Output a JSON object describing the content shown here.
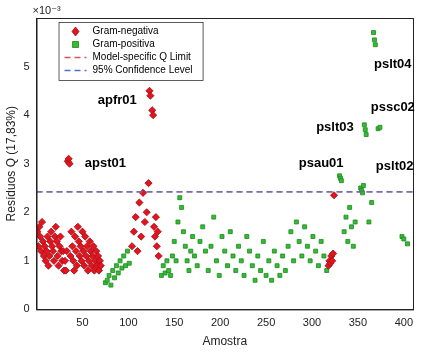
{
  "chart_data": {
    "type": "scatter",
    "x_label": "Amostra",
    "y_label": "Resíduos Q (17,83%)",
    "y_exponent_label": "×10⁻³",
    "xlim": [
      0,
      410
    ],
    "xticks": [
      50,
      100,
      150,
      200,
      250,
      300,
      350,
      400
    ],
    "ylim": [
      0,
      6
    ],
    "yticks": [
      0,
      1,
      2,
      3,
      4,
      5
    ],
    "grid": false,
    "legend": "upper left",
    "series": [
      {
        "name": "Gram-negativa",
        "type": "scatter",
        "marker": "diamond",
        "color": "#e3141e",
        "x": [
          1,
          2,
          3,
          4,
          5,
          6,
          7,
          8,
          9,
          10,
          11,
          12,
          13,
          14,
          15,
          16,
          17,
          18,
          19,
          20,
          21,
          22,
          23,
          24,
          25,
          26,
          27,
          28,
          29,
          30,
          31,
          32,
          33,
          34,
          35,
          36,
          37,
          38,
          39,
          40,
          41,
          42,
          43,
          44,
          45,
          46,
          47,
          48,
          49,
          50,
          51,
          52,
          53,
          54,
          55,
          56,
          57,
          58,
          59,
          60,
          61,
          62,
          63,
          64,
          65,
          66,
          67,
          68,
          69,
          70,
          104,
          106,
          108,
          110,
          112,
          114,
          116,
          118,
          120,
          122,
          123,
          124,
          126,
          127,
          128,
          129,
          130,
          131,
          132,
          133,
          318,
          319,
          320,
          321,
          322,
          323,
          324
        ],
        "values": [
          1.6,
          1.3,
          1.7,
          1.5,
          1.2,
          1.8,
          1.4,
          1.1,
          1.3,
          1.0,
          1.2,
          1.5,
          0.9,
          1.1,
          1.4,
          1.6,
          1.3,
          1.2,
          1.0,
          1.5,
          1.7,
          1.4,
          1.1,
          0.9,
          1.3,
          1.5,
          1.2,
          1.0,
          1.2,
          0.8,
          1.0,
          0.8,
          1.2,
          3.05,
          3.1,
          3.0,
          1.1,
          1.6,
          1.3,
          1.0,
          0.8,
          1.5,
          1.2,
          0.9,
          1.7,
          1.4,
          1.1,
          1.3,
          1.0,
          1.6,
          1.2,
          0.9,
          1.5,
          1.1,
          1.3,
          0.8,
          1.0,
          1.4,
          1.2,
          0.9,
          1.1,
          1.3,
          0.8,
          1.0,
          1.2,
          0.9,
          1.1,
          0.8,
          1.0,
          0.9,
          1.3,
          1.6,
          1.9,
          1.2,
          2.2,
          1.5,
          2.4,
          1.8,
          2.0,
          2.6,
          4.5,
          4.4,
          4.1,
          4.0,
          1.7,
          1.5,
          1.9,
          1.3,
          1.6,
          1.1,
          0.9,
          1.0,
          0.95,
          1.1,
          1.0,
          1.15,
          2.35
        ]
      },
      {
        "name": "Gram-positiva",
        "type": "scatter",
        "marker": "square",
        "color": "#2fbf2f",
        "x": [
          75,
          77,
          79,
          81,
          83,
          85,
          87,
          89,
          91,
          93,
          95,
          97,
          99,
          101,
          136,
          138,
          140,
          142,
          144,
          146,
          148,
          150,
          152,
          154,
          156,
          158,
          160,
          162,
          164,
          166,
          168,
          170,
          172,
          175,
          178,
          181,
          184,
          187,
          190,
          193,
          196,
          199,
          202,
          205,
          208,
          211,
          214,
          217,
          220,
          223,
          226,
          229,
          232,
          235,
          238,
          241,
          244,
          247,
          250,
          253,
          256,
          259,
          262,
          265,
          268,
          271,
          274,
          277,
          280,
          283,
          286,
          289,
          292,
          295,
          298,
          301,
          304,
          307,
          310,
          313,
          316,
          330,
          331,
          332,
          335,
          337,
          339,
          341,
          343,
          345,
          347,
          353,
          354,
          355,
          356,
          357,
          358,
          359,
          362,
          365,
          367,
          368,
          369,
          372,
          374,
          398,
          400,
          404
        ],
        "values": [
          0.55,
          0.6,
          0.7,
          0.5,
          0.8,
          0.65,
          0.9,
          0.75,
          1.0,
          0.85,
          1.1,
          0.9,
          1.2,
          0.95,
          0.7,
          0.9,
          0.75,
          1.0,
          0.8,
          0.7,
          1.1,
          1.4,
          1.0,
          1.8,
          2.3,
          2.1,
          1.6,
          1.3,
          1.0,
          0.8,
          1.2,
          1.5,
          1.1,
          0.9,
          1.4,
          1.7,
          1.2,
          0.8,
          1.3,
          1.9,
          1.0,
          0.7,
          1.5,
          1.2,
          0.9,
          1.6,
          1.1,
          0.8,
          1.3,
          1.0,
          0.7,
          1.5,
          1.2,
          0.9,
          0.6,
          1.1,
          0.8,
          1.4,
          0.7,
          1.0,
          0.6,
          1.2,
          0.9,
          0.7,
          1.1,
          0.8,
          1.3,
          1.6,
          1.0,
          1.8,
          1.4,
          1.1,
          1.7,
          1.3,
          1.0,
          1.5,
          1.2,
          0.9,
          1.4,
          1.1,
          0.8,
          2.75,
          2.7,
          2.65,
          1.6,
          1.9,
          1.4,
          2.1,
          1.7,
          1.3,
          1.8,
          2.5,
          2.45,
          2.4,
          2.55,
          3.8,
          3.7,
          3.6,
          1.8,
          2.2,
          5.7,
          5.55,
          5.45,
          3.72,
          3.75,
          1.5,
          1.45,
          1.35
        ]
      },
      {
        "name": "Model-specific Q Limit",
        "type": "line",
        "line_style": "dashed",
        "color": "#d9534f",
        "x": [
          0,
          410
        ],
        "values": [
          2.42,
          2.42
        ]
      },
      {
        "name": "95% Confidence Level",
        "type": "line",
        "line_style": "dashed",
        "color": "#4a72c8",
        "x": [
          0,
          410
        ],
        "values": [
          2.42,
          2.42
        ]
      }
    ],
    "annotations": [
      {
        "text": "apst01",
        "x": 75,
        "y": 3.0
      },
      {
        "text": "apfr01",
        "x": 88,
        "y": 4.3
      },
      {
        "text": "psau01",
        "x": 310,
        "y": 3.0
      },
      {
        "text": "pslt03",
        "x": 325,
        "y": 3.75
      },
      {
        "text": "pssc02",
        "x": 388,
        "y": 4.15
      },
      {
        "text": "pslt04",
        "x": 388,
        "y": 5.05
      },
      {
        "text": "pslt02",
        "x": 390,
        "y": 2.95
      }
    ]
  }
}
